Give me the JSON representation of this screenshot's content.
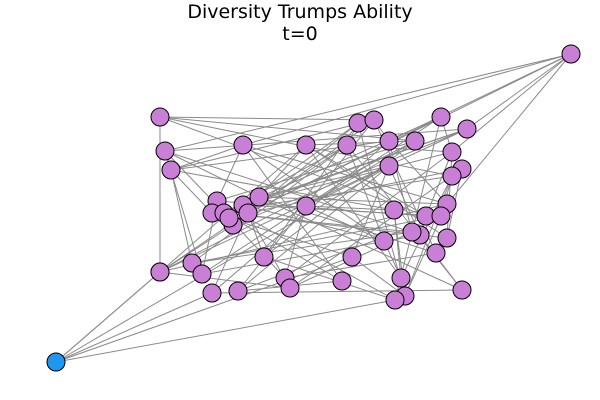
{
  "title": "Diversity Trumps Ability",
  "subtitle": "t=0",
  "colors": {
    "edge": "#8a8a8a",
    "node_default": "#c97fd6",
    "node_highlight": "#1e97f0",
    "node_stroke": "#000000",
    "background": "#ffffff"
  },
  "nodes": [
    {
      "id": 0
    },
    {
      "id": 1
    },
    {
      "id": 2
    },
    {
      "id": 3
    },
    {
      "id": 4
    },
    {
      "id": 5
    },
    {
      "id": 6
    },
    {
      "id": 7
    },
    {
      "id": 8
    },
    {
      "id": 9
    },
    {
      "id": 10
    },
    {
      "id": 11
    },
    {
      "id": 12
    },
    {
      "id": 13
    },
    {
      "id": 14
    },
    {
      "id": 15
    },
    {
      "id": 16
    },
    {
      "id": 17
    },
    {
      "id": 18
    },
    {
      "id": 19
    },
    {
      "id": 20
    },
    {
      "id": 21
    },
    {
      "id": 22
    },
    {
      "id": 23
    },
    {
      "id": 24
    },
    {
      "id": 25
    },
    {
      "id": 26
    },
    {
      "id": 27
    },
    {
      "id": 28
    },
    {
      "id": 29
    },
    {
      "id": 30
    },
    {
      "id": 31
    },
    {
      "id": 32
    },
    {
      "id": 33
    },
    {
      "id": 34
    },
    {
      "id": 35
    },
    {
      "id": 36
    },
    {
      "id": 37
    },
    {
      "id": 38
    },
    {
      "id": 39
    },
    {
      "id": 40
    },
    {
      "id": 41
    },
    {
      "id": 42
    },
    {
      "id": 43
    },
    {
      "id": 44
    },
    {
      "id": 45
    },
    {
      "id": 46
    },
    {
      "id": 47
    },
    {
      "id": 48
    },
    {
      "id": 49
    },
    {
      "id": 50,
      "highlight": true
    }
  ],
  "edges": [
    [
      50,
      49
    ],
    [
      50,
      14
    ],
    [
      50,
      40
    ],
    [
      50,
      45
    ],
    [
      50,
      36
    ],
    [
      50,
      33
    ],
    [
      49,
      7
    ],
    [
      49,
      8
    ],
    [
      49,
      10
    ],
    [
      49,
      27
    ],
    [
      0,
      6
    ],
    [
      0,
      5
    ],
    [
      0,
      11
    ],
    [
      0,
      12
    ],
    [
      0,
      22
    ],
    [
      0,
      24
    ],
    [
      1,
      3
    ],
    [
      1,
      10
    ],
    [
      1,
      25
    ],
    [
      1,
      33
    ],
    [
      2,
      8
    ],
    [
      2,
      18
    ],
    [
      2,
      31
    ],
    [
      2,
      44
    ],
    [
      3,
      9
    ],
    [
      3,
      27
    ],
    [
      3,
      32
    ],
    [
      3,
      41
    ],
    [
      4,
      12
    ],
    [
      4,
      22
    ],
    [
      4,
      35
    ],
    [
      4,
      45
    ],
    [
      5,
      11
    ],
    [
      5,
      21
    ],
    [
      5,
      27
    ],
    [
      5,
      33
    ],
    [
      6,
      13
    ],
    [
      6,
      17
    ],
    [
      6,
      30
    ],
    [
      6,
      38
    ],
    [
      7,
      10
    ],
    [
      7,
      19
    ],
    [
      7,
      29
    ],
    [
      7,
      39
    ],
    [
      8,
      12
    ],
    [
      8,
      21
    ],
    [
      8,
      34
    ],
    [
      8,
      43
    ],
    [
      9,
      13
    ],
    [
      9,
      24
    ],
    [
      9,
      40
    ],
    [
      9,
      47
    ],
    [
      10,
      17
    ],
    [
      10,
      23
    ],
    [
      10,
      31
    ],
    [
      11,
      19
    ],
    [
      11,
      28
    ],
    [
      11,
      46
    ],
    [
      12,
      18
    ],
    [
      12,
      25
    ],
    [
      12,
      37
    ],
    [
      13,
      20
    ],
    [
      13,
      34
    ],
    [
      13,
      48
    ],
    [
      14,
      23
    ],
    [
      14,
      28
    ],
    [
      14,
      36
    ],
    [
      14,
      41
    ],
    [
      15,
      16
    ],
    [
      15,
      22
    ],
    [
      15,
      29
    ],
    [
      15,
      42
    ],
    [
      16,
      20
    ],
    [
      16,
      26
    ],
    [
      16,
      39
    ],
    [
      16,
      44
    ],
    [
      17,
      25
    ],
    [
      17,
      35
    ],
    [
      17,
      45
    ],
    [
      18,
      26
    ],
    [
      18,
      30
    ],
    [
      18,
      42
    ],
    [
      19,
      24
    ],
    [
      19,
      32
    ],
    [
      19,
      43
    ],
    [
      20,
      27
    ],
    [
      20,
      36
    ],
    [
      20,
      46
    ],
    [
      21,
      29
    ],
    [
      21,
      38
    ],
    [
      21,
      47
    ],
    [
      22,
      31
    ],
    [
      22,
      40
    ],
    [
      23,
      30
    ],
    [
      23,
      37
    ],
    [
      23,
      48
    ],
    [
      24,
      33
    ],
    [
      24,
      44
    ],
    [
      26,
      34
    ],
    [
      26,
      41
    ],
    [
      28,
      35
    ],
    [
      28,
      43
    ],
    [
      30,
      39
    ],
    [
      31,
      45
    ],
    [
      32,
      37
    ],
    [
      33,
      42
    ],
    [
      34,
      47
    ],
    [
      36,
      44
    ],
    [
      37,
      46
    ],
    [
      38,
      41
    ],
    [
      39,
      48
    ],
    [
      40,
      43
    ],
    [
      42,
      47
    ],
    [
      44,
      48
    ],
    [
      0,
      9
    ],
    [
      1,
      16
    ],
    [
      2,
      27
    ],
    [
      3,
      13
    ],
    [
      4,
      21
    ],
    [
      5,
      18
    ],
    [
      6,
      24
    ],
    [
      7,
      25
    ],
    [
      8,
      30
    ],
    [
      11,
      35
    ],
    [
      12,
      29
    ],
    [
      14,
      19
    ]
  ]
}
